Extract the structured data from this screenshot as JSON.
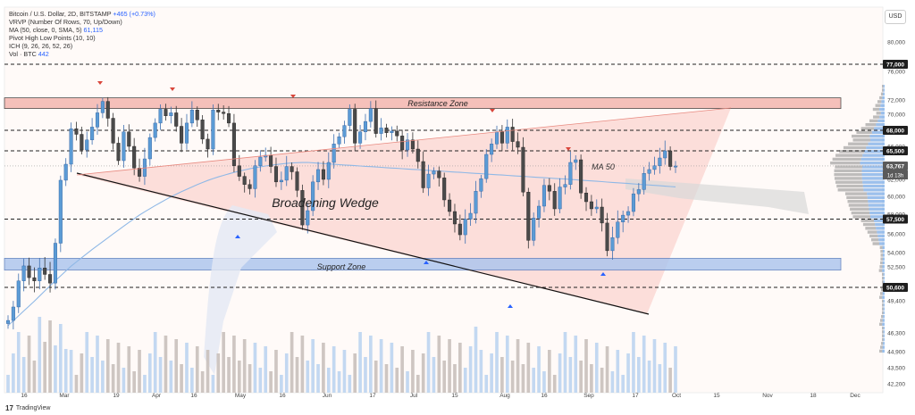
{
  "legend": {
    "symbol": "Bitcoin / U.S. Dollar, 2D, BITSTAMP",
    "change": "+465 (+0.73%)",
    "vrvp": "VRVP (Number Of Rows, 70, Up/Down)",
    "ma_label": "MA (50, close, 0, SMA, 5)",
    "ma_value": "61,115",
    "pivot": "Pivot High Low Points (10, 10)",
    "ichimoku": "ICH (9, 26, 26, 52, 26)",
    "vol_label": "Vol · BTC",
    "vol_value": "442"
  },
  "currency_button": "USD",
  "footer": {
    "logo": "17",
    "brand": "TradingView"
  },
  "annotations": {
    "resistance": "Resistance Zone",
    "support": "Support Zone",
    "wedge": "Broadening Wedge",
    "ma": "MA 50"
  },
  "colors": {
    "up": "#5b9bd5",
    "down": "#4a4a4a",
    "zone_red": "#f4b6b0",
    "zone_blue": "#a9c4ee",
    "wedge_fill": "#fbd7d2",
    "ma": "#8fb8e6",
    "cloud": "#d9d9d9",
    "price_tag": "#1e1e1e"
  },
  "chart_data": {
    "type": "candlestick",
    "y_axis": {
      "ticks": [
        "80,000",
        "76,000",
        "72,000",
        "70,000",
        "68,000",
        "66,000",
        "64,000",
        "62,000",
        "60,000",
        "58,000",
        "56,000",
        "54,000",
        "52,500",
        "50,600",
        "49,400",
        "46,300",
        "44,900",
        "43,500",
        "42,200"
      ],
      "tagged_levels": [
        {
          "label": "77,000",
          "value": 77000
        },
        {
          "label": "68,000",
          "value": 68000
        },
        {
          "label": "65,500",
          "value": 65500
        },
        {
          "label": "63,767",
          "value": 63767
        },
        {
          "label": "57,500",
          "value": 57500
        },
        {
          "label": "50,600",
          "value": 50600
        }
      ],
      "countdown": "1d 13h"
    },
    "x_axis": {
      "ticks": [
        "16",
        "Mar",
        "19",
        "Apr",
        "16",
        "May",
        "16",
        "Jun",
        "17",
        "Jul",
        "15",
        "Aug",
        "16",
        "Sep",
        "17",
        "Oct",
        "15",
        "Nov",
        "18",
        "Dec"
      ]
    },
    "resistance_zone": [
      70800,
      72300
    ],
    "support_zone": [
      52200,
      53400
    ],
    "dashed_levels": [
      77000,
      68000,
      65500,
      57500,
      50600
    ],
    "candles_close": [
      47500,
      48800,
      51200,
      52600,
      51500,
      51200,
      52400,
      51800,
      51000,
      55000,
      61900,
      64000,
      68200,
      67500,
      65600,
      66800,
      68400,
      70200,
      71800,
      69500,
      66400,
      64400,
      67800,
      66000,
      63500,
      62400,
      64600,
      67100,
      68900,
      70700,
      69800,
      70200,
      68500,
      66400,
      68900,
      70600,
      69300,
      66900,
      65700,
      70600,
      70300,
      70100,
      68900,
      63800,
      62400,
      61400,
      60900,
      63800,
      64800,
      65000,
      63700,
      61700,
      61900,
      63700,
      63000,
      60700,
      56900,
      58400,
      61700,
      63300,
      62000,
      64200,
      66300,
      67200,
      68600,
      70700,
      66400,
      67800,
      69100,
      70800,
      67600,
      68300,
      67700,
      67900,
      67300,
      65600,
      66800,
      65700,
      64300,
      61000,
      62700,
      63100,
      62200,
      59600,
      58300,
      57000,
      55900,
      57500,
      58100,
      60600,
      62100,
      65100,
      66300,
      67800,
      66400,
      68400,
      66600,
      65900,
      60500,
      55300,
      57600,
      58900,
      61300,
      60600,
      58600,
      61100,
      61400,
      64200,
      64500,
      60400,
      59400,
      58600,
      58800,
      57100,
      54200,
      55600,
      57200,
      57900,
      58300,
      60300,
      60800,
      62800,
      63300,
      63800,
      64700,
      65500,
      63700,
      63767
    ],
    "ma50_start": 47000,
    "ma50_end": 61115,
    "volume_label": "Vol · BTC 442"
  }
}
